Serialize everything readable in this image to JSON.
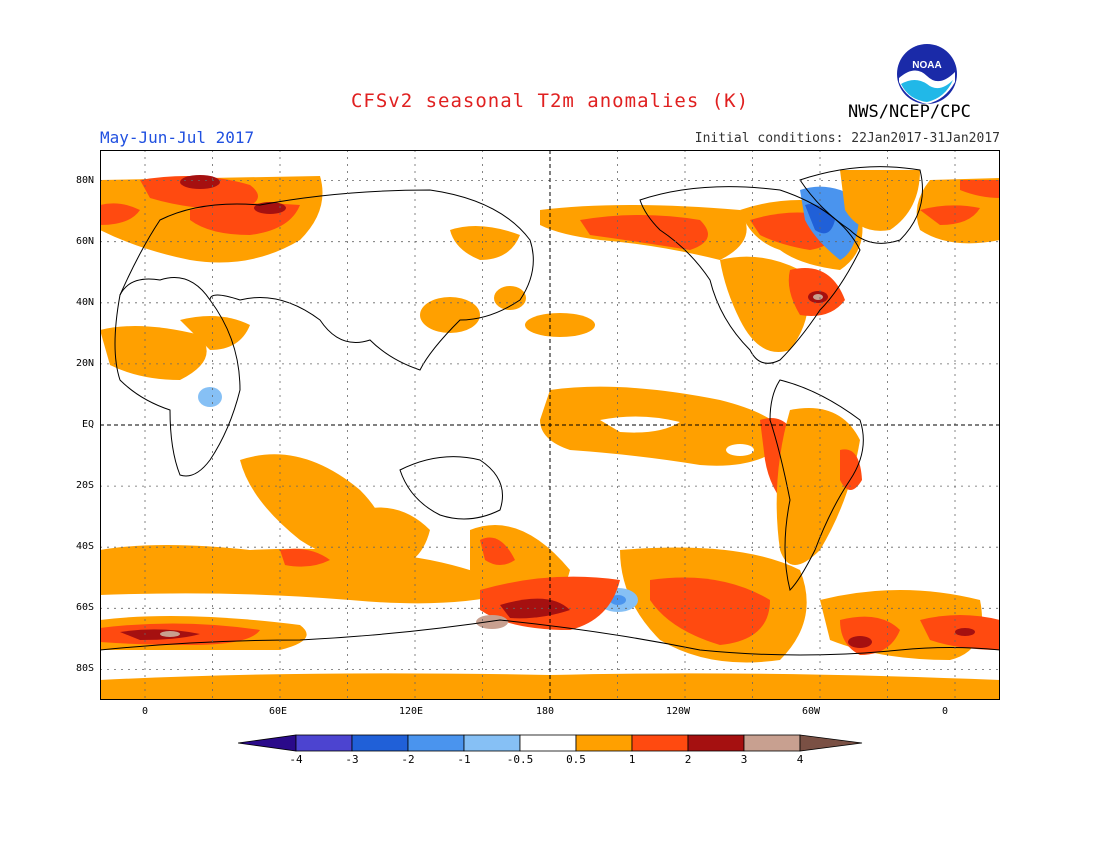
{
  "header": {
    "title": "CFSv2 seasonal T2m anomalies (K)",
    "season": "May-Jun-Jul 2017",
    "initial_conditions": "Initial conditions: 22Jan2017-31Jan2017",
    "agency": "NWS/NCEP/CPC",
    "logo_text": "NOAA"
  },
  "map": {
    "projection": "cylindrical equidistant",
    "lat_labels": [
      "80N",
      "60N",
      "40N",
      "20N",
      "EQ",
      "20S",
      "40S",
      "60S",
      "80S"
    ],
    "lon_labels": [
      "0",
      "60E",
      "120E",
      "180",
      "120W",
      "60W",
      "0"
    ],
    "grid": true
  },
  "colorbar": {
    "tick_labels": [
      "-4",
      "-3",
      "-2",
      "-1",
      "-0.5",
      "0.5",
      "1",
      "2",
      "3",
      "4"
    ],
    "colors": {
      "lt_m4": "#2a0a8a",
      "m4_m3": "#4c44d0",
      "m3_m2": "#2060d8",
      "m2_m1": "#4a94ee",
      "m1_m05": "#86c0f5",
      "neutral": "#ffffff",
      "p05_p1": "#ffa000",
      "p1_p2": "#ff4a10",
      "p2_p3": "#a51010",
      "p3_p4": "#c8a090",
      "gt_p4": "#7a5044"
    }
  }
}
